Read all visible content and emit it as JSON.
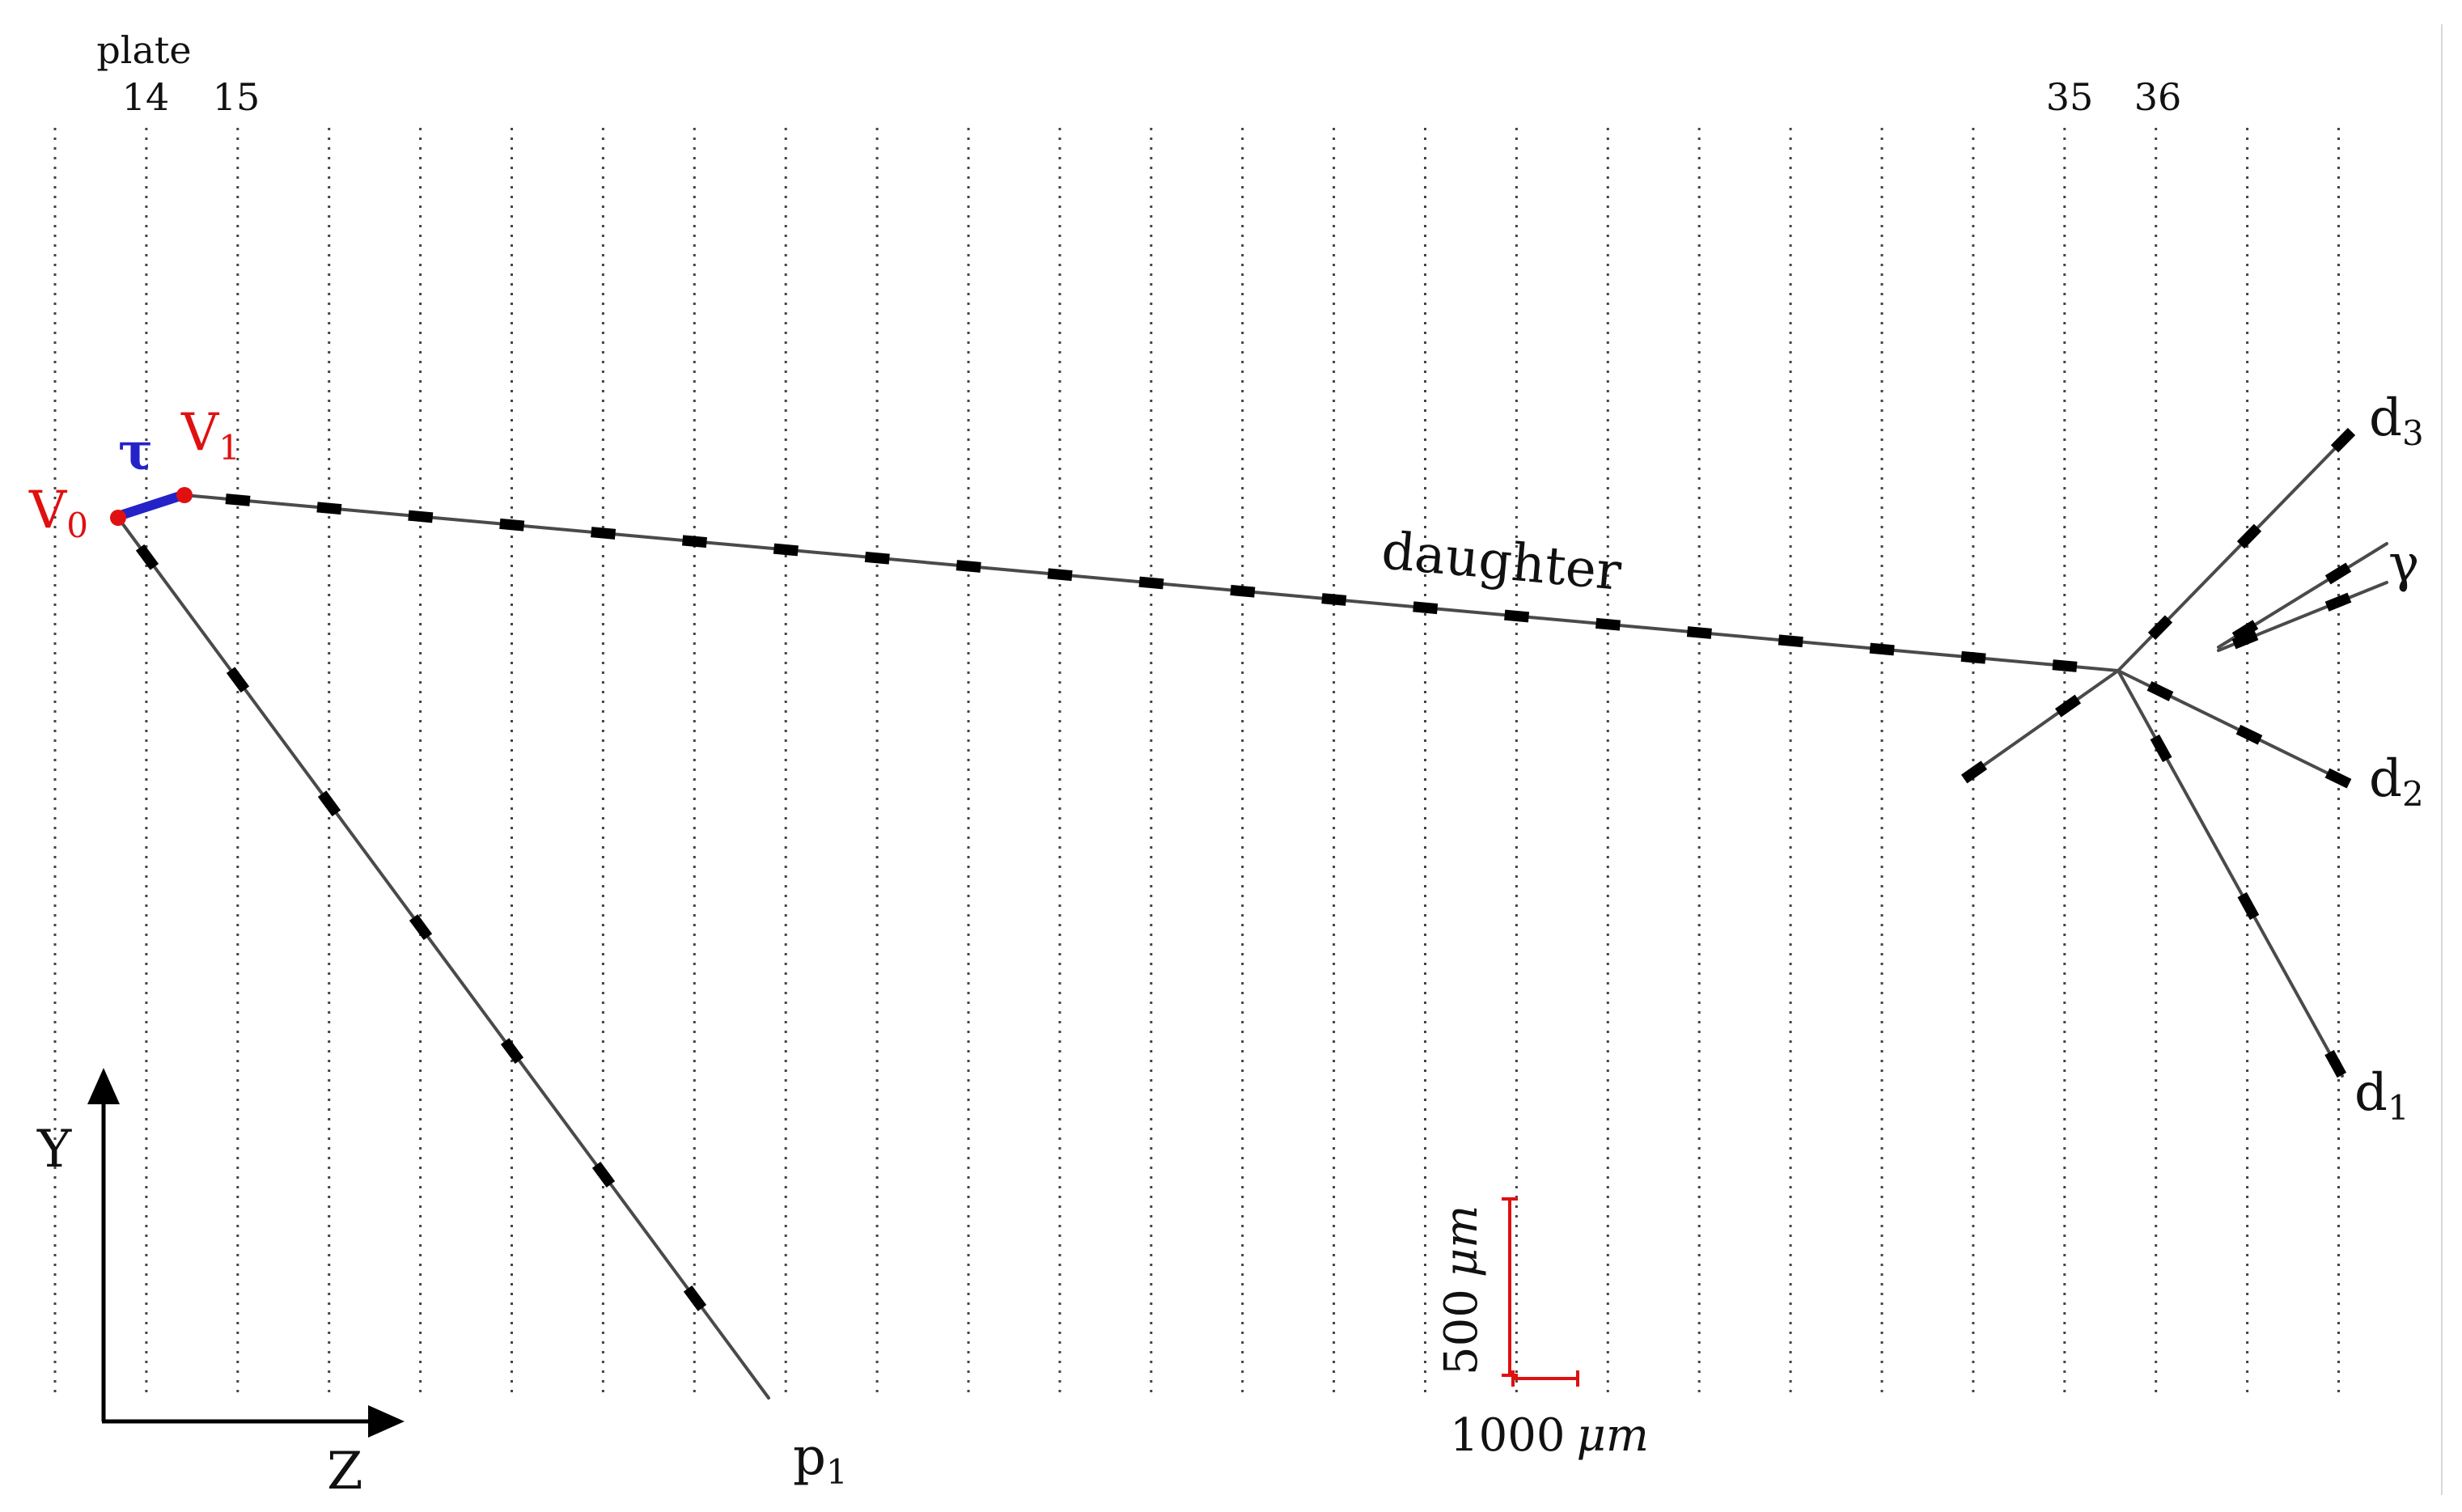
{
  "header": {
    "plate_word": "plate",
    "plate_numbers": [
      "14",
      "15",
      "35",
      "36"
    ]
  },
  "vertices": {
    "v0": {
      "main": "V",
      "sub": "0",
      "color": "#e01010"
    },
    "v1": {
      "main": "V",
      "sub": "1",
      "color": "#e01010"
    }
  },
  "parent_track": {
    "label": "τ",
    "color": "#2323c8"
  },
  "tracks": {
    "daughter": "daughter",
    "p1": {
      "main": "p",
      "sub": "1"
    },
    "d1": {
      "main": "d",
      "sub": "1"
    },
    "d2": {
      "main": "d",
      "sub": "2"
    },
    "d3": {
      "main": "d",
      "sub": "3"
    },
    "gamma": "γ"
  },
  "axes": {
    "y_label": "Y",
    "z_label": "Z"
  },
  "scale_bar": {
    "vertical": {
      "value": "500",
      "unit": "μm"
    },
    "horizontal": {
      "value": "1000",
      "unit": "μm"
    },
    "color": "#e01010"
  },
  "colors": {
    "track": "#4a4a4a",
    "segment": "#000000",
    "plate_line": "#444444"
  }
}
